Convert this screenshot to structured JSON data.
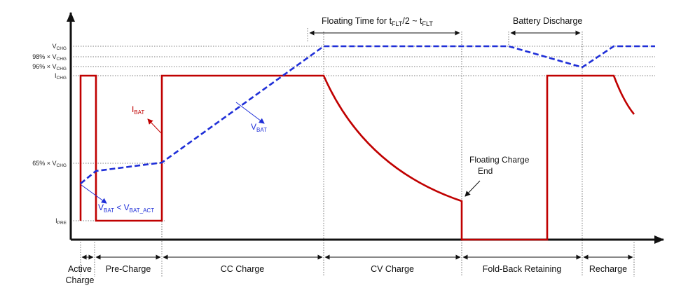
{
  "y_labels": {
    "vchg": {
      "pre": "V",
      "sub": "CHG"
    },
    "pct98": {
      "pre": "98% × V",
      "sub": "CHG"
    },
    "pct96": {
      "pre": "96% × V",
      "sub": "CHG"
    },
    "ichg": {
      "pre": "I",
      "sub": "CHG"
    },
    "pct65": {
      "pre": "65% × V",
      "sub": "CHG"
    },
    "ipre": {
      "pre": "I",
      "sub": "PRE"
    }
  },
  "top_labels": {
    "floating": {
      "a": "Floating Time for t",
      "a_sub": "FLT",
      "b": "/2 ~ t",
      "b_sub": "FLT"
    },
    "discharge": "Battery Discharge"
  },
  "phases": {
    "active_1": "Active",
    "active_2": "Charge",
    "pre": "Pre-Charge",
    "cc": "CC Charge",
    "cv": "CV  Charge",
    "foldback": "Fold-Back Retaining",
    "recharge": "Recharge"
  },
  "signals": {
    "ibat": {
      "pre": "I",
      "sub": "BAT"
    },
    "vbat": {
      "pre": "V",
      "sub": "BAT"
    },
    "vbat_act": {
      "a": "V",
      "a_sub": "BAT",
      "mid": " < V",
      "b_sub": "BAT_ACT"
    }
  },
  "annotations": {
    "float_end_1": "Floating Charge",
    "float_end_2": "End"
  },
  "colors": {
    "current": "#c00000",
    "voltage": "#1f2fd8",
    "axis": "#111111",
    "dotted": "#555555"
  }
}
